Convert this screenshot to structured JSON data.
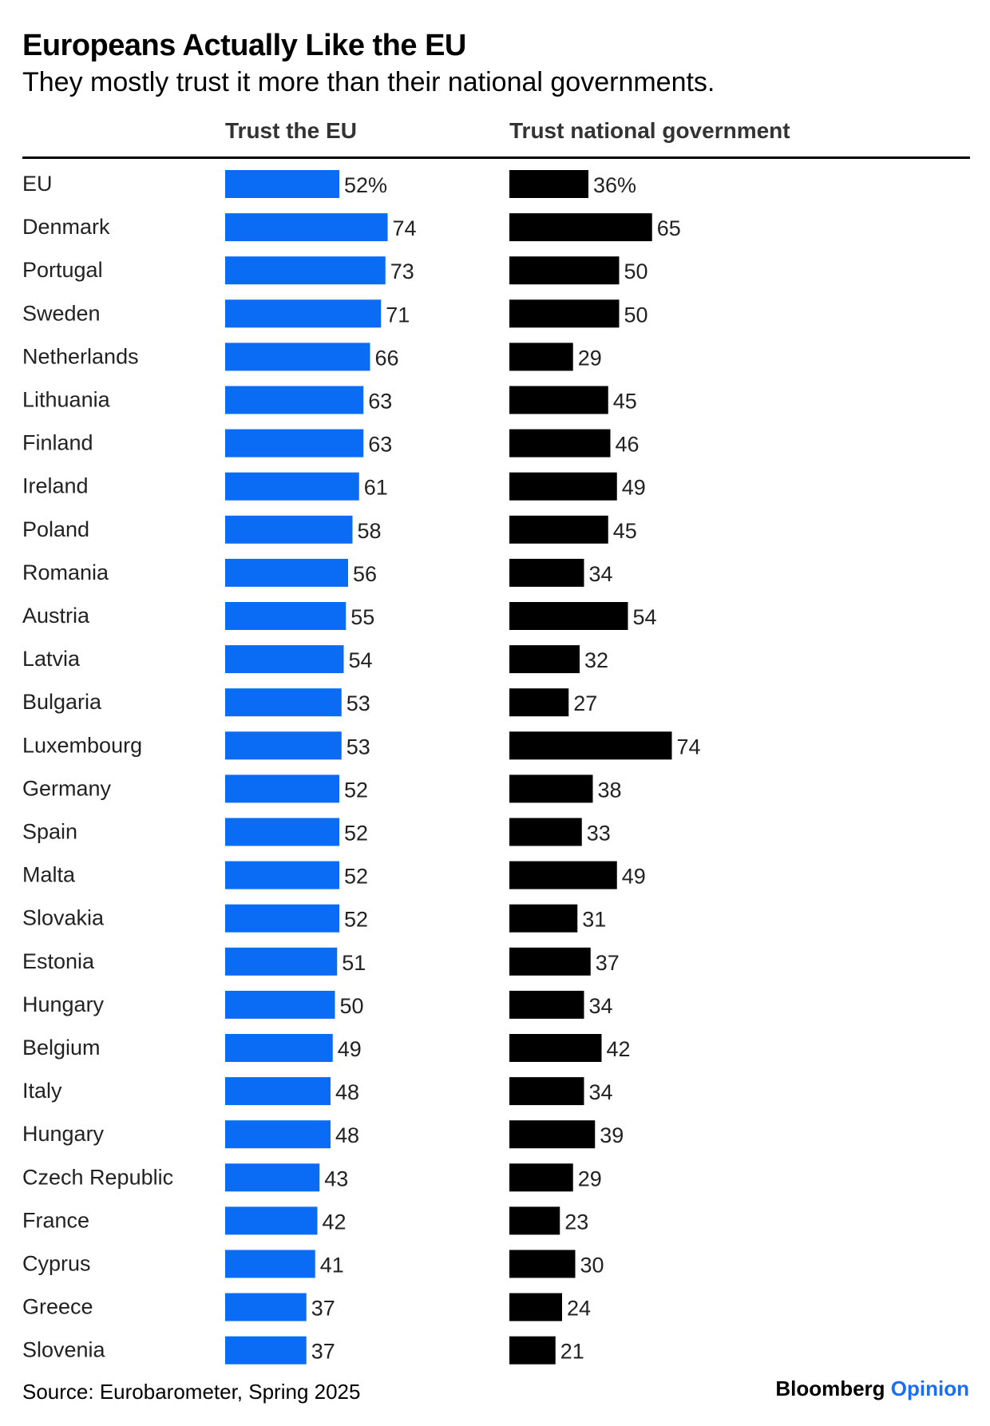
{
  "title": "Europeans Actually Like the EU",
  "subtitle": "They mostly trust it more than their national governments.",
  "source": "Source: Eurobarometer, Spring 2025",
  "brand": {
    "name": "Bloomberg",
    "suffix": "Opinion"
  },
  "colors": {
    "eu": "#0a6cf5",
    "national": "#000000",
    "brand_accent": "#1a6ef5"
  },
  "chart_data": {
    "type": "bar",
    "orientation": "horizontal",
    "unit": "%",
    "categories": [
      "EU",
      "Denmark",
      "Portugal",
      "Sweden",
      "Netherlands",
      "Lithuania",
      "Finland",
      "Ireland",
      "Poland",
      "Romania",
      "Austria",
      "Latvia",
      "Bulgaria",
      "Luxembourg",
      "Germany",
      "Spain",
      "Malta",
      "Slovakia",
      "Estonia",
      "Hungary",
      "Belgium",
      "Italy",
      "Hungary",
      "Czech Republic",
      "France",
      "Cyprus",
      "Greece",
      "Slovenia"
    ],
    "series": [
      {
        "name": "Trust the EU",
        "color": "#0a6cf5",
        "values": [
          52,
          74,
          73,
          71,
          66,
          63,
          63,
          61,
          58,
          56,
          55,
          54,
          53,
          53,
          52,
          52,
          52,
          52,
          51,
          50,
          49,
          48,
          48,
          43,
          42,
          41,
          37,
          37
        ]
      },
      {
        "name": "Trust national government",
        "color": "#000000",
        "values": [
          36,
          65,
          50,
          50,
          29,
          45,
          46,
          49,
          45,
          34,
          54,
          32,
          27,
          74,
          38,
          33,
          49,
          31,
          37,
          34,
          42,
          34,
          39,
          29,
          23,
          30,
          24,
          21
        ]
      }
    ],
    "first_label_suffix": "%"
  }
}
